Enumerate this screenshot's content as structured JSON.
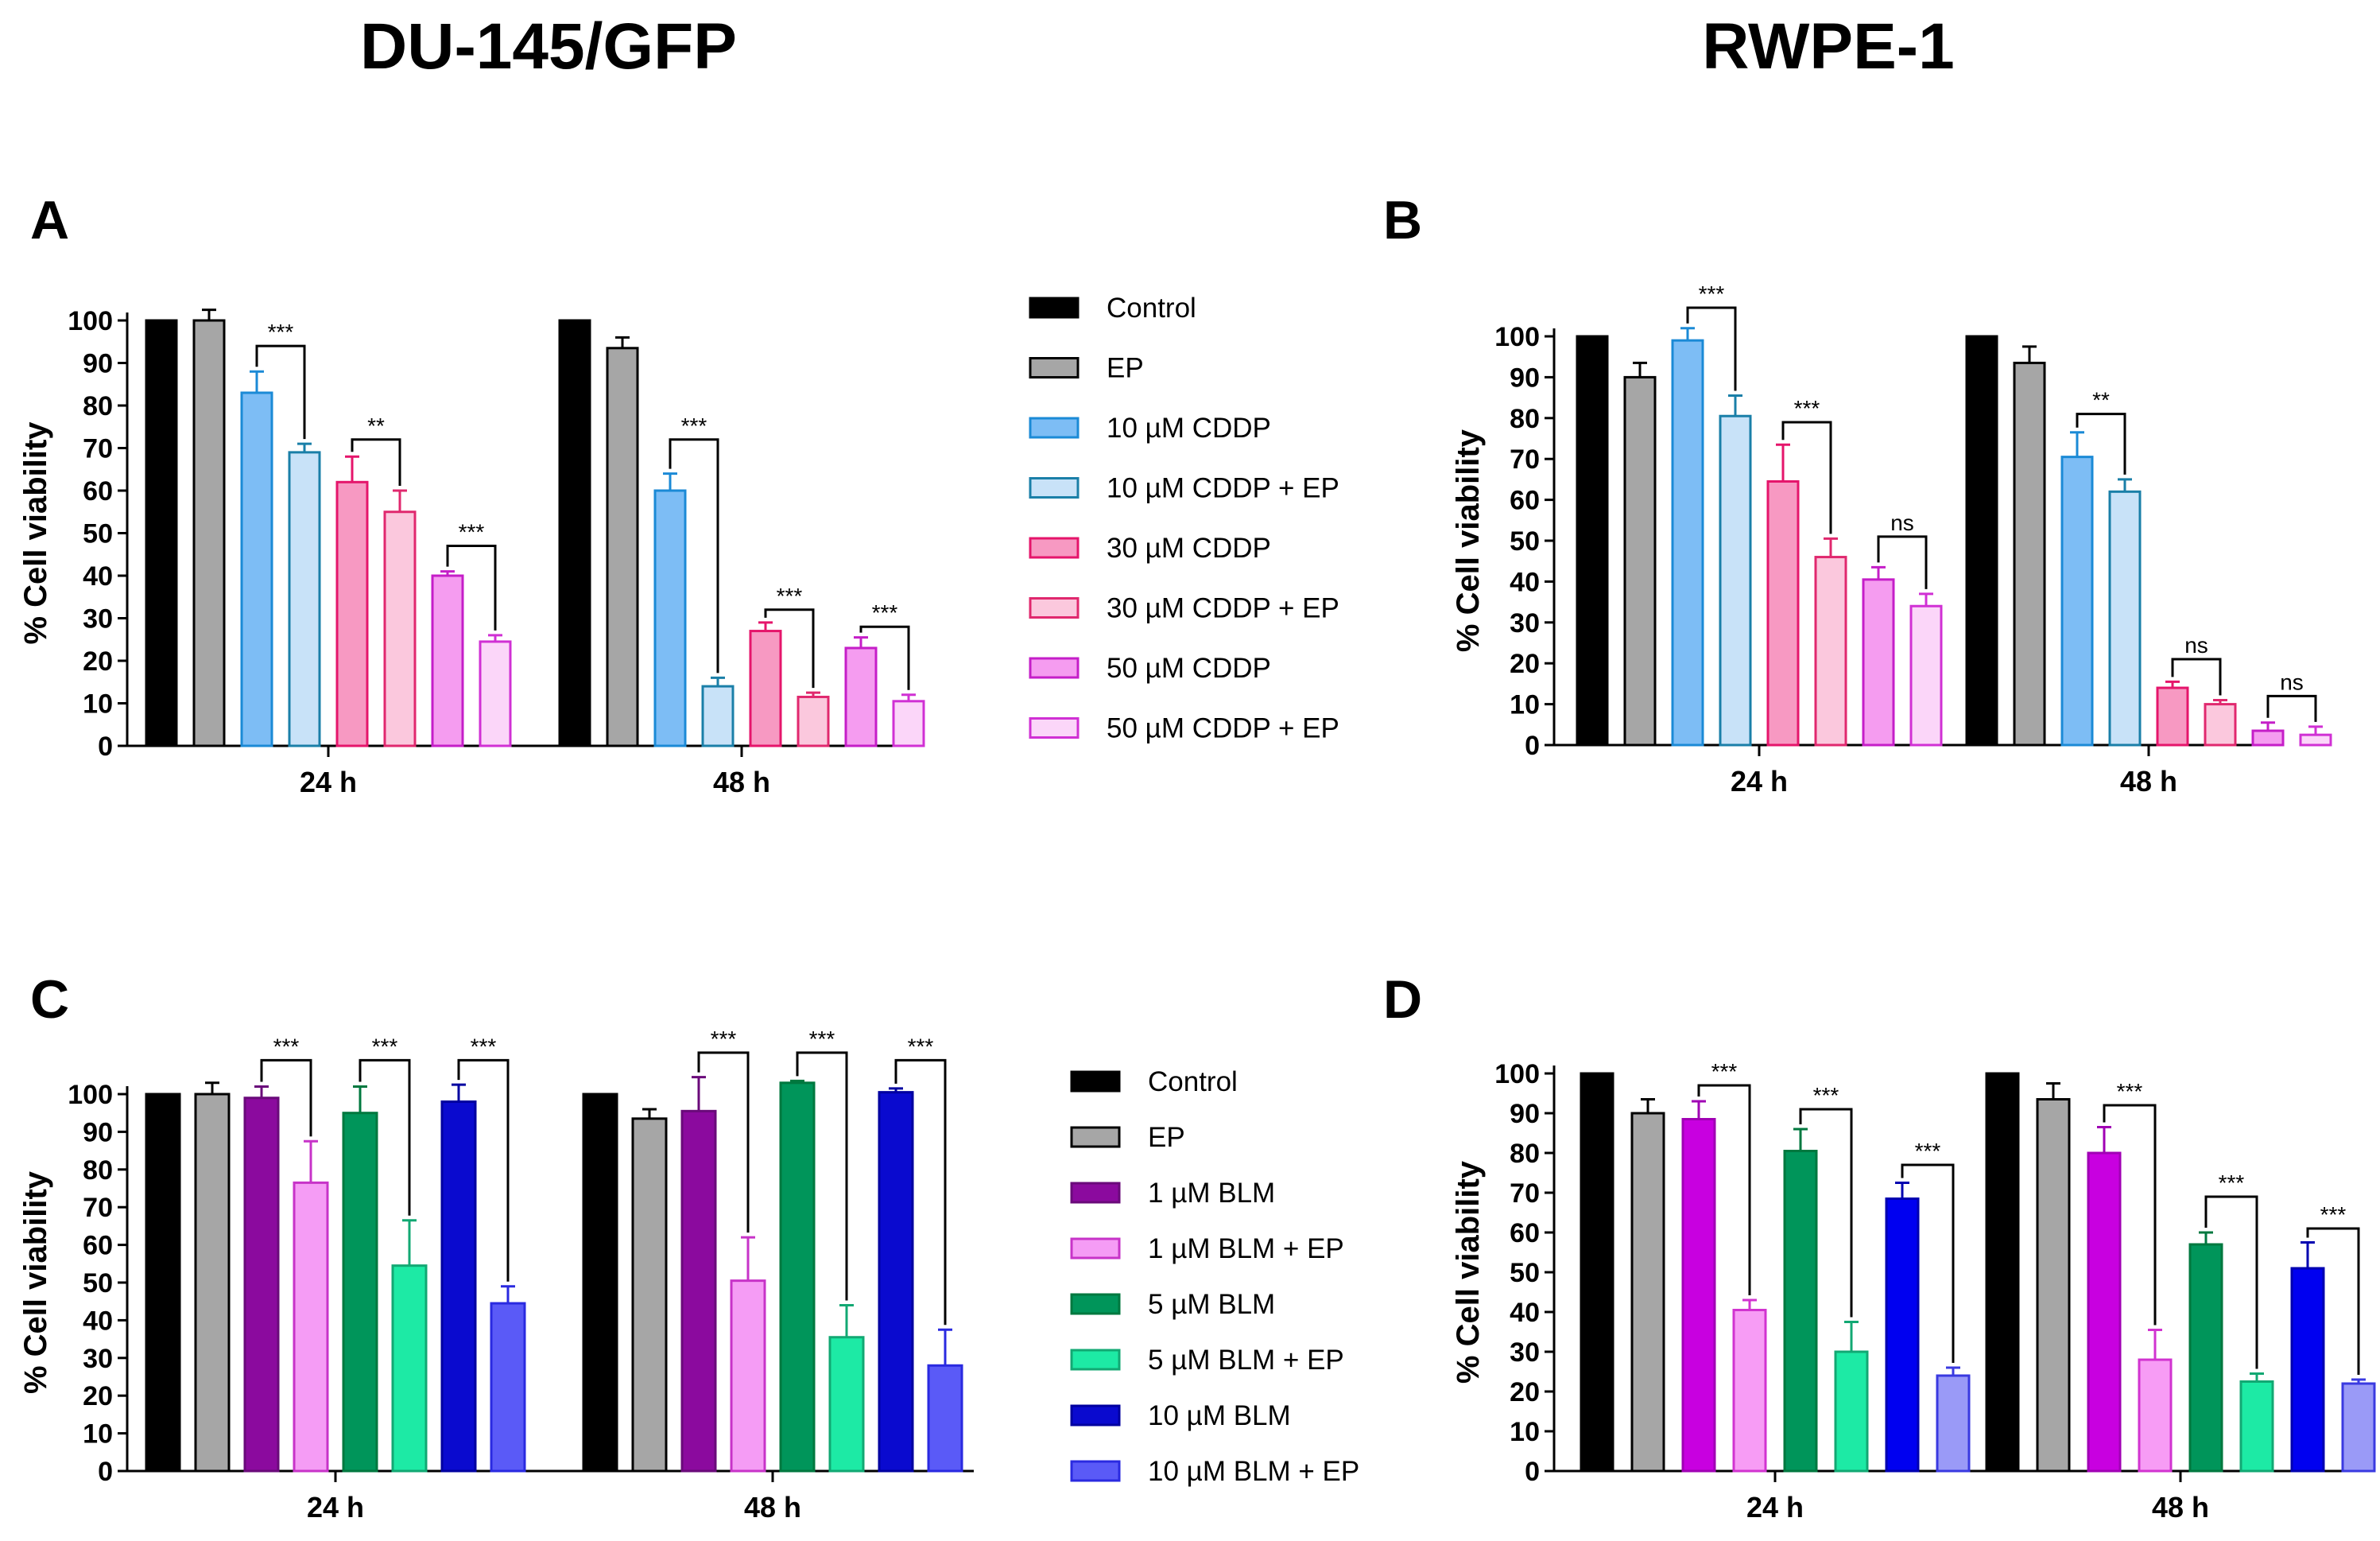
{
  "titles": {
    "left": "DU-145/GFP",
    "right": "RWPE-1"
  },
  "chart_data": [
    {
      "panel": "A",
      "type": "bar",
      "ylabel": "% Cell viability",
      "ylim": [
        0,
        100
      ],
      "yticks": [
        0,
        10,
        20,
        30,
        40,
        50,
        60,
        70,
        80,
        90,
        100
      ],
      "categories": [
        "24 h",
        "48 h"
      ],
      "series": [
        {
          "name": "Control",
          "fill": "#000000",
          "stroke": "#000000",
          "values": [
            100,
            100
          ],
          "errors": [
            0,
            0
          ]
        },
        {
          "name": "EP",
          "fill": "#a6a6a6",
          "stroke": "#000000",
          "values": [
            100,
            93.5
          ],
          "errors": [
            2.5,
            2.5
          ]
        },
        {
          "name": "10 µM CDDP",
          "fill": "#7dbdf5",
          "stroke": "#1b8ad6",
          "values": [
            83,
            60
          ],
          "errors": [
            5,
            4
          ]
        },
        {
          "name": "10 µM CDDP + EP",
          "fill": "#c8e2f8",
          "stroke": "#1a7fa8",
          "values": [
            69,
            14
          ],
          "errors": [
            2,
            2
          ]
        },
        {
          "name": "30 µM CDDP",
          "fill": "#f799c2",
          "stroke": "#e5156b",
          "values": [
            62,
            27
          ],
          "errors": [
            6,
            2
          ]
        },
        {
          "name": "30 µM CDDP + EP",
          "fill": "#fbc8dd",
          "stroke": "#e0286e",
          "values": [
            55,
            11.5
          ],
          "errors": [
            5,
            1
          ]
        },
        {
          "name": "50 µM CDDP",
          "fill": "#f59cf0",
          "stroke": "#c51ec8",
          "values": [
            40,
            23
          ],
          "errors": [
            1,
            2.5
          ]
        },
        {
          "name": "50 µM CDDP + EP",
          "fill": "#fbd6f9",
          "stroke": "#d030d4",
          "values": [
            24.5,
            10.5
          ],
          "errors": [
            1.5,
            1.5
          ]
        }
      ],
      "comparisons": [
        {
          "category": "24 h",
          "pair": [
            2,
            3
          ],
          "label": "***",
          "y": 94
        },
        {
          "category": "24 h",
          "pair": [
            4,
            5
          ],
          "label": "**",
          "y": 72
        },
        {
          "category": "24 h",
          "pair": [
            6,
            7
          ],
          "label": "***",
          "y": 47
        },
        {
          "category": "48 h",
          "pair": [
            2,
            3
          ],
          "label": "***",
          "y": 72
        },
        {
          "category": "48 h",
          "pair": [
            4,
            5
          ],
          "label": "***",
          "y": 32
        },
        {
          "category": "48 h",
          "pair": [
            6,
            7
          ],
          "label": "***",
          "y": 28
        }
      ]
    },
    {
      "panel": "B",
      "type": "bar",
      "ylabel": "% Cell viability",
      "ylim": [
        0,
        100
      ],
      "yticks": [
        0,
        10,
        20,
        30,
        40,
        50,
        60,
        70,
        80,
        90,
        100
      ],
      "categories": [
        "24 h",
        "48 h"
      ],
      "series": [
        {
          "name": "Control",
          "fill": "#000000",
          "stroke": "#000000",
          "values": [
            100,
            100
          ],
          "errors": [
            0,
            0
          ]
        },
        {
          "name": "EP",
          "fill": "#a6a6a6",
          "stroke": "#000000",
          "values": [
            90,
            93.5
          ],
          "errors": [
            3.5,
            4
          ]
        },
        {
          "name": "10 µM CDDP",
          "fill": "#7dbdf5",
          "stroke": "#1b8ad6",
          "values": [
            99,
            70.5
          ],
          "errors": [
            3,
            6
          ]
        },
        {
          "name": "10 µM CDDP + EP",
          "fill": "#c8e2f8",
          "stroke": "#1a7fa8",
          "values": [
            80.5,
            62
          ],
          "errors": [
            5,
            3
          ]
        },
        {
          "name": "30 µM CDDP",
          "fill": "#f799c2",
          "stroke": "#e5156b",
          "values": [
            64.5,
            14
          ],
          "errors": [
            9,
            1.5
          ]
        },
        {
          "name": "30 µM CDDP + EP",
          "fill": "#fbc8dd",
          "stroke": "#e0286e",
          "values": [
            46,
            10
          ],
          "errors": [
            4.5,
            1
          ]
        },
        {
          "name": "50 µM CDDP",
          "fill": "#f59cf0",
          "stroke": "#c51ec8",
          "values": [
            40.5,
            3.5
          ],
          "errors": [
            3,
            2
          ]
        },
        {
          "name": "50 µM CDDP + EP",
          "fill": "#fbd6f9",
          "stroke": "#d030d4",
          "values": [
            34,
            2.5
          ],
          "errors": [
            3,
            2
          ]
        }
      ],
      "comparisons": [
        {
          "category": "24 h",
          "pair": [
            2,
            3
          ],
          "label": "***",
          "y": 107
        },
        {
          "category": "24 h",
          "pair": [
            4,
            5
          ],
          "label": "***",
          "y": 79
        },
        {
          "category": "24 h",
          "pair": [
            6,
            7
          ],
          "label": "ns",
          "y": 51
        },
        {
          "category": "48 h",
          "pair": [
            2,
            3
          ],
          "label": "**",
          "y": 81
        },
        {
          "category": "48 h",
          "pair": [
            4,
            5
          ],
          "label": "ns",
          "y": 21
        },
        {
          "category": "48 h",
          "pair": [
            6,
            7
          ],
          "label": "ns",
          "y": 12
        }
      ]
    },
    {
      "panel": "C",
      "type": "bar",
      "ylabel": "% Cell viability",
      "ylim": [
        0,
        100
      ],
      "yticks": [
        0,
        10,
        20,
        30,
        40,
        50,
        60,
        70,
        80,
        90,
        100
      ],
      "categories": [
        "24 h",
        "48 h"
      ],
      "series": [
        {
          "name": "Control",
          "fill": "#000000",
          "stroke": "#000000",
          "values": [
            100,
            100
          ],
          "errors": [
            0,
            0
          ]
        },
        {
          "name": "EP",
          "fill": "#a6a6a6",
          "stroke": "#000000",
          "values": [
            100,
            93.5
          ],
          "errors": [
            3,
            2.5
          ]
        },
        {
          "name": "1 µM BLM",
          "fill": "#8b0a9e",
          "stroke": "#6a0a7a",
          "values": [
            99,
            95.5
          ],
          "errors": [
            3,
            9
          ]
        },
        {
          "name": "1 µM BLM + EP",
          "fill": "#f59cf5",
          "stroke": "#c733c8",
          "values": [
            76.5,
            50.5
          ],
          "errors": [
            11,
            11.5
          ]
        },
        {
          "name": "5 µM BLM",
          "fill": "#00955a",
          "stroke": "#00783f",
          "values": [
            95,
            103
          ],
          "errors": [
            7,
            0.5
          ]
        },
        {
          "name": "5 µM BLM + EP",
          "fill": "#1deaa5",
          "stroke": "#12a873",
          "values": [
            54.5,
            35.5
          ],
          "errors": [
            12,
            8.5
          ]
        },
        {
          "name": "10 µM BLM",
          "fill": "#0a0acf",
          "stroke": "#0000a0",
          "values": [
            98,
            100.5
          ],
          "errors": [
            4.5,
            1
          ]
        },
        {
          "name": "10 µM BLM + EP",
          "fill": "#5a5af7",
          "stroke": "#2a2ae0",
          "values": [
            44.5,
            28
          ],
          "errors": [
            4.5,
            9.5
          ]
        }
      ],
      "comparisons": [
        {
          "category": "24 h",
          "pair": [
            2,
            3
          ],
          "label": "***",
          "y": 109
        },
        {
          "category": "24 h",
          "pair": [
            4,
            5
          ],
          "label": "***",
          "y": 109
        },
        {
          "category": "24 h",
          "pair": [
            6,
            7
          ],
          "label": "***",
          "y": 109
        },
        {
          "category": "48 h",
          "pair": [
            2,
            3
          ],
          "label": "***",
          "y": 111
        },
        {
          "category": "48 h",
          "pair": [
            4,
            5
          ],
          "label": "***",
          "y": 111
        },
        {
          "category": "48 h",
          "pair": [
            6,
            7
          ],
          "label": "***",
          "y": 109
        }
      ]
    },
    {
      "panel": "D",
      "type": "bar",
      "ylabel": "% Cell viability",
      "ylim": [
        0,
        100
      ],
      "yticks": [
        0,
        10,
        20,
        30,
        40,
        50,
        60,
        70,
        80,
        90,
        100
      ],
      "categories": [
        "24 h",
        "48 h"
      ],
      "series": [
        {
          "name": "Control",
          "fill": "#000000",
          "stroke": "#000000",
          "values": [
            100,
            100
          ],
          "errors": [
            0,
            0
          ]
        },
        {
          "name": "EP",
          "fill": "#a6a6a6",
          "stroke": "#000000",
          "values": [
            90,
            93.5
          ],
          "errors": [
            3.5,
            4
          ]
        },
        {
          "name": "1 µM BLM",
          "fill": "#c800e0",
          "stroke": "#a000b4",
          "values": [
            88.5,
            80
          ],
          "errors": [
            4.5,
            6.5
          ]
        },
        {
          "name": "1 µM BLM + EP",
          "fill": "#f79cf5",
          "stroke": "#d133d0",
          "values": [
            40.5,
            28
          ],
          "errors": [
            2.5,
            7.5
          ]
        },
        {
          "name": "5 µM BLM",
          "fill": "#00955a",
          "stroke": "#00783f",
          "values": [
            80.5,
            57
          ],
          "errors": [
            5.5,
            3
          ]
        },
        {
          "name": "5 µM BLM + EP",
          "fill": "#1deaa5",
          "stroke": "#12a873",
          "values": [
            30,
            22.5
          ],
          "errors": [
            7.5,
            2
          ]
        },
        {
          "name": "10 µM BLM",
          "fill": "#0000f0",
          "stroke": "#0000b0",
          "values": [
            68.5,
            51
          ],
          "errors": [
            4,
            6.5
          ]
        },
        {
          "name": "10 µM BLM + EP",
          "fill": "#9a9af7",
          "stroke": "#3a3ae0",
          "values": [
            24,
            22
          ],
          "errors": [
            2,
            1
          ]
        }
      ],
      "comparisons": [
        {
          "category": "24 h",
          "pair": [
            2,
            3
          ],
          "label": "***",
          "y": 97
        },
        {
          "category": "24 h",
          "pair": [
            4,
            5
          ],
          "label": "***",
          "y": 91
        },
        {
          "category": "24 h",
          "pair": [
            6,
            7
          ],
          "label": "***",
          "y": 77
        },
        {
          "category": "48 h",
          "pair": [
            2,
            3
          ],
          "label": "***",
          "y": 92
        },
        {
          "category": "48 h",
          "pair": [
            4,
            5
          ],
          "label": "***",
          "y": 69
        },
        {
          "category": "48 h",
          "pair": [
            6,
            7
          ],
          "label": "***",
          "y": 61
        }
      ]
    }
  ],
  "legends": [
    {
      "id": "cddp",
      "items": [
        "Control",
        "EP",
        "10 µM CDDP",
        "10 µM CDDP + EP",
        "30 µM CDDP",
        "30 µM CDDP + EP",
        "50 µM CDDP",
        "50 µM CDDP + EP"
      ]
    },
    {
      "id": "blm",
      "items": [
        "Control",
        "EP",
        "1 µM BLM",
        "1 µM BLM + EP",
        "5 µM BLM",
        "5 µM BLM + EP",
        "10 µM BLM",
        "10 µM BLM + EP"
      ]
    }
  ]
}
